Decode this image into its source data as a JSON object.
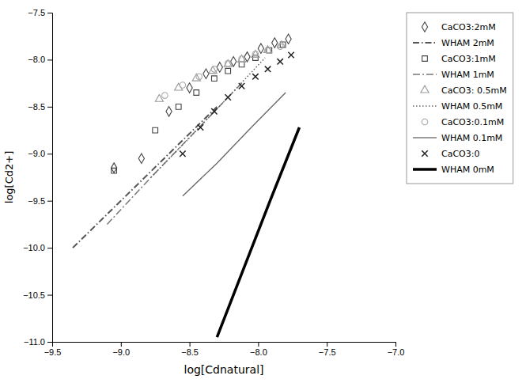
{
  "chart_data": {
    "type": "scatter",
    "x_label": "log[Cdnatural]",
    "y_label": "log[Cd2+]",
    "xlim": [
      -9.5,
      -7.0
    ],
    "ylim": [
      -11.0,
      -7.5
    ],
    "xticks": [
      {
        "value": -9.5,
        "label": "−9.5"
      },
      {
        "value": -9.0,
        "label": "−9.0"
      },
      {
        "value": -8.5,
        "label": "−8.5"
      },
      {
        "value": -8.0,
        "label": "−8.0"
      },
      {
        "value": -7.5,
        "label": "−7.5"
      },
      {
        "value": -7.0,
        "label": "−7.0"
      }
    ],
    "yticks": [
      {
        "value": -11.0,
        "label": "−11.0"
      },
      {
        "value": -10.5,
        "label": "−10.5"
      },
      {
        "value": -10.0,
        "label": "−10.0"
      },
      {
        "value": -9.5,
        "label": "−9.5"
      },
      {
        "value": -9.0,
        "label": "−9.0"
      },
      {
        "value": -8.5,
        "label": "−8.5"
      },
      {
        "value": -8.0,
        "label": "−8.0"
      },
      {
        "value": -7.5,
        "label": "−7.5"
      }
    ],
    "grid": false,
    "legend": "right",
    "series": [
      {
        "name": "CaCO3:2mM",
        "type": "scatter",
        "marker": "diamond",
        "color": "#444444",
        "x": [
          -9.05,
          -8.85,
          -8.65,
          -8.5,
          -8.38,
          -8.28,
          -8.18,
          -8.08,
          -7.98,
          -7.88,
          -7.78
        ],
        "values": [
          -9.15,
          -9.05,
          -8.55,
          -8.3,
          -8.15,
          -8.08,
          -8.02,
          -7.97,
          -7.88,
          -7.82,
          -7.78
        ]
      },
      {
        "name": "WHAM 2mM",
        "type": "line",
        "line_style": "dash-dot",
        "color": "#555555",
        "x": [
          -9.35,
          -9.0,
          -8.65,
          -8.3
        ],
        "values": [
          -10.0,
          -9.5,
          -9.0,
          -8.5
        ]
      },
      {
        "name": "CaCO3:1mM",
        "type": "scatter",
        "marker": "square",
        "color": "#444444",
        "x": [
          -9.05,
          -8.75,
          -8.58,
          -8.45,
          -8.32,
          -8.22,
          -8.12,
          -8.02,
          -7.92,
          -7.82
        ],
        "values": [
          -9.18,
          -8.75,
          -8.5,
          -8.35,
          -8.2,
          -8.12,
          -8.05,
          -7.98,
          -7.9,
          -7.84
        ]
      },
      {
        "name": "WHAM 1mM",
        "type": "line",
        "line_style": "long-dash-dot",
        "color": "#777777",
        "x": [
          -9.1,
          -8.78,
          -8.45,
          -8.12
        ],
        "values": [
          -9.75,
          -9.25,
          -8.75,
          -8.25
        ]
      },
      {
        "name": "CaCO3: 0.5mM",
        "type": "scatter",
        "marker": "triangle",
        "color": "#999999",
        "x": [
          -8.72,
          -8.58,
          -8.45,
          -8.33,
          -8.22,
          -8.12,
          -8.02,
          -7.93,
          -7.83
        ],
        "values": [
          -8.42,
          -8.3,
          -8.2,
          -8.12,
          -8.05,
          -8.0,
          -7.95,
          -7.9,
          -7.85
        ]
      },
      {
        "name": "WHAM 0.5mM",
        "type": "line",
        "line_style": "dotted",
        "color": "#666666",
        "x": [
          -8.78,
          -8.5,
          -8.22,
          -7.95
        ],
        "values": [
          -9.25,
          -8.83,
          -8.4,
          -7.98
        ]
      },
      {
        "name": "CaCO3:0.1mM",
        "type": "scatter",
        "marker": "circle",
        "color": "#aaaaaa",
        "x": [
          -8.68,
          -8.55,
          -8.43,
          -8.32,
          -8.22,
          -8.12,
          -8.02,
          -7.93,
          -7.84
        ],
        "values": [
          -8.38,
          -8.27,
          -8.18,
          -8.1,
          -8.04,
          -7.99,
          -7.94,
          -7.9,
          -7.86
        ]
      },
      {
        "name": "WHAM 0.1mM",
        "type": "line",
        "line_style": "solid",
        "color": "#666666",
        "x": [
          -8.55,
          -8.3,
          -8.05,
          -7.8
        ],
        "values": [
          -9.45,
          -9.1,
          -8.72,
          -8.35
        ]
      },
      {
        "name": "CaCO3:0",
        "type": "scatter",
        "marker": "x",
        "color": "#222222",
        "x": [
          -8.55,
          -8.42,
          -8.32,
          -8.22,
          -8.12,
          -8.02,
          -7.93,
          -7.84,
          -7.76
        ],
        "values": [
          -9.0,
          -8.72,
          -8.55,
          -8.4,
          -8.28,
          -8.18,
          -8.1,
          -8.02,
          -7.95
        ]
      },
      {
        "name": "WHAM 0mM",
        "type": "line",
        "line_style": "bold",
        "color": "#000000",
        "x": [
          -8.3,
          -8.1,
          -7.9,
          -7.7
        ],
        "values": [
          -10.95,
          -10.2,
          -9.45,
          -8.72
        ]
      }
    ]
  }
}
